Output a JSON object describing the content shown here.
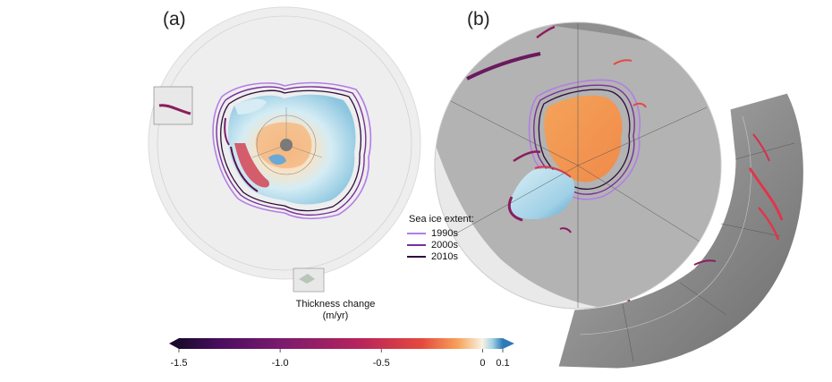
{
  "panels": [
    {
      "label": "(a)",
      "region": "Antarctica"
    },
    {
      "label": "(b)",
      "region": "Arctic"
    }
  ],
  "legend": {
    "title": "Sea ice extent:",
    "entries": [
      {
        "label": "1990s",
        "color": "#b27ee6"
      },
      {
        "label": "2000s",
        "color": "#7a2f9a"
      },
      {
        "label": "2010s",
        "color": "#2a0d3c"
      }
    ]
  },
  "colorbar": {
    "title": "Thickness change",
    "unit": "(m/yr)",
    "range": [
      -1.5,
      0.1
    ],
    "ticks": [
      {
        "value": -1.5,
        "label": "-1.5"
      },
      {
        "value": -1.0,
        "label": "-1.0"
      },
      {
        "value": -0.5,
        "label": "-0.5"
      },
      {
        "value": 0,
        "label": "0"
      },
      {
        "value": 0.1,
        "label": "0.1"
      }
    ],
    "stops": [
      {
        "value": -1.6,
        "color": "#1a0a2e"
      },
      {
        "value": -1.3,
        "color": "#4a0d5f"
      },
      {
        "value": -1.0,
        "color": "#7a1a6e"
      },
      {
        "value": -0.6,
        "color": "#b8245c"
      },
      {
        "value": -0.3,
        "color": "#e44a3c"
      },
      {
        "value": -0.12,
        "color": "#f7a35c"
      },
      {
        "value": 0,
        "color": "#f8f2e4"
      },
      {
        "value": 0.05,
        "color": "#9ed0e4"
      },
      {
        "value": 0.1,
        "color": "#2e7ab8"
      }
    ]
  },
  "colors": {
    "ocean": "#eeeeee",
    "land_grey": "#9a9a9a",
    "ice_orange": "#f2a25e",
    "ice_blue": "#cfe8f2"
  }
}
